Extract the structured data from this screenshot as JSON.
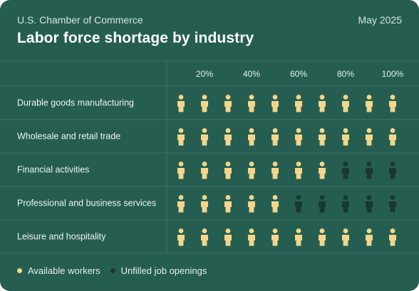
{
  "header": {
    "source": "U.S. Chamber of Commerce",
    "date": "May 2025",
    "title": "Labor force shortage by industry"
  },
  "colors": {
    "background": "#255e50",
    "available": "#f3d68c",
    "unfilled": "#18392f",
    "gridline": "#3b7466"
  },
  "chart_data": {
    "type": "table",
    "ticks": [
      "20%",
      "40%",
      "60%",
      "80%",
      "100%"
    ],
    "icons_per_row": 10,
    "categories": [
      "Durable goods manufacturing",
      "Wholesale and retail trade",
      "Financial activities",
      "Professional and business services",
      "Leisure and hospitality"
    ],
    "series": [
      {
        "name": "Available workers",
        "values": [
          10,
          10,
          7,
          5,
          10
        ]
      },
      {
        "name": "Unfilled job openings",
        "values": [
          0,
          0,
          3,
          5,
          0
        ]
      }
    ]
  },
  "legend": {
    "available_label": "Available workers",
    "unfilled_label": "Unfilled job openings"
  }
}
